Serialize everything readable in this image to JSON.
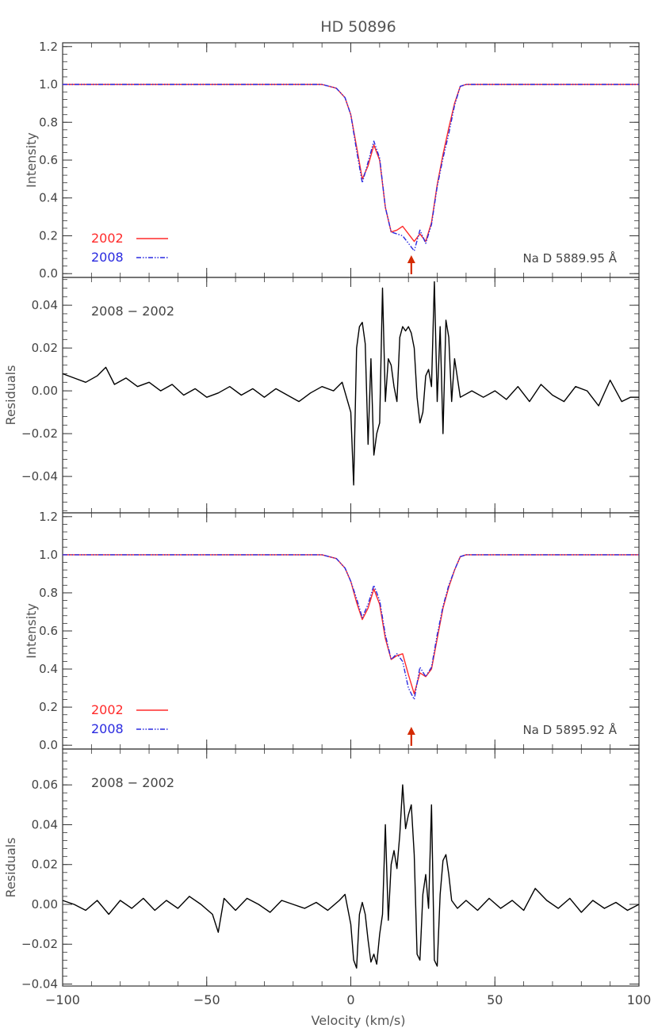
{
  "figure": {
    "title": "HD 50896",
    "xlabel": "Velocity (km/s)",
    "xlim": [
      -100,
      100
    ],
    "xticks": [
      -100,
      -50,
      0,
      50,
      100
    ],
    "xtick_labels": [
      "−100",
      "−50",
      "0",
      "50",
      "100"
    ]
  },
  "colors": {
    "series_2002": "#ff2a2a",
    "series_2008": "#2a2ae0",
    "residual": "#000000",
    "arrow": "#d42a00",
    "axis": "#333333"
  },
  "chart_data": [
    {
      "type": "line",
      "ylabel": "Intensity",
      "ylim": [
        -0.02,
        1.22
      ],
      "yticks": [
        0.0,
        0.2,
        0.4,
        0.6,
        0.8,
        1.0,
        1.2
      ],
      "ytick_labels": [
        "0.0",
        "0.2",
        "0.4",
        "0.6",
        "0.8",
        "1.0",
        "1.2"
      ],
      "annotation": "Na D 5889.95 Å",
      "arrow_velocity": 21,
      "legend": [
        {
          "label": "2002",
          "style": "solid"
        },
        {
          "label": "2008",
          "style": "dash-dot-dot"
        }
      ],
      "series": [
        {
          "name": "2002",
          "x": [
            -100,
            -90,
            -80,
            -70,
            -60,
            -50,
            -40,
            -30,
            -20,
            -10,
            -5,
            -2,
            0,
            2,
            4,
            6,
            8,
            10,
            12,
            14,
            16,
            18,
            20,
            22,
            24,
            26,
            28,
            30,
            32,
            34,
            36,
            38,
            40,
            50,
            60,
            70,
            80,
            90,
            100
          ],
          "y": [
            1.0,
            1.0,
            1.0,
            1.0,
            1.0,
            1.0,
            1.0,
            1.0,
            1.0,
            1.0,
            0.98,
            0.93,
            0.84,
            0.67,
            0.5,
            0.57,
            0.68,
            0.6,
            0.35,
            0.22,
            0.23,
            0.25,
            0.21,
            0.17,
            0.21,
            0.17,
            0.27,
            0.47,
            0.63,
            0.77,
            0.9,
            0.99,
            1.0,
            1.0,
            1.0,
            1.0,
            1.0,
            1.0,
            1.0
          ]
        },
        {
          "name": "2008",
          "x": [
            -100,
            -90,
            -80,
            -70,
            -60,
            -50,
            -40,
            -30,
            -20,
            -10,
            -5,
            -2,
            0,
            2,
            4,
            6,
            8,
            10,
            12,
            14,
            16,
            18,
            20,
            22,
            24,
            26,
            28,
            30,
            32,
            34,
            36,
            38,
            40,
            50,
            60,
            70,
            80,
            90,
            100
          ],
          "y": [
            1.0,
            1.0,
            1.0,
            1.0,
            1.0,
            1.0,
            1.0,
            1.0,
            1.0,
            1.0,
            0.98,
            0.93,
            0.84,
            0.65,
            0.48,
            0.59,
            0.7,
            0.61,
            0.35,
            0.22,
            0.21,
            0.2,
            0.16,
            0.12,
            0.23,
            0.16,
            0.26,
            0.46,
            0.61,
            0.74,
            0.89,
            0.99,
            1.0,
            1.0,
            1.0,
            1.0,
            1.0,
            1.0,
            1.0
          ]
        }
      ]
    },
    {
      "type": "line",
      "ylabel": "Residuals",
      "ylim": [
        -0.057,
        0.053
      ],
      "yticks": [
        -0.04,
        -0.02,
        0.0,
        0.02,
        0.04
      ],
      "ytick_labels": [
        "−0.04",
        "−0.02",
        "0.00",
        "0.02",
        "0.04"
      ],
      "annotation": "2008 − 2002",
      "series": [
        {
          "name": "2008 − 2002",
          "x": [
            -100,
            -96,
            -92,
            -88,
            -85,
            -82,
            -78,
            -74,
            -70,
            -66,
            -62,
            -58,
            -54,
            -50,
            -46,
            -42,
            -38,
            -34,
            -30,
            -26,
            -22,
            -18,
            -14,
            -10,
            -6,
            -3,
            0,
            1,
            2,
            3,
            4,
            5,
            6,
            7,
            8,
            9,
            10,
            11,
            12,
            13,
            14,
            15,
            16,
            17,
            18,
            19,
            20,
            21,
            22,
            23,
            24,
            25,
            26,
            27,
            28,
            29,
            30,
            31,
            32,
            33,
            34,
            35,
            36,
            38,
            42,
            46,
            50,
            54,
            58,
            62,
            66,
            70,
            74,
            78,
            82,
            86,
            90,
            94,
            97,
            100
          ],
          "y": [
            0.008,
            0.006,
            0.004,
            0.007,
            0.011,
            0.003,
            0.006,
            0.002,
            0.004,
            0.0,
            0.003,
            -0.002,
            0.001,
            -0.003,
            -0.001,
            0.002,
            -0.002,
            0.001,
            -0.003,
            0.001,
            -0.002,
            -0.005,
            -0.001,
            0.002,
            0.0,
            0.004,
            -0.01,
            -0.044,
            0.02,
            0.03,
            0.032,
            0.022,
            -0.025,
            0.015,
            -0.03,
            -0.02,
            -0.015,
            0.048,
            -0.005,
            0.015,
            0.012,
            0.002,
            -0.005,
            0.025,
            0.03,
            0.028,
            0.03,
            0.027,
            0.02,
            -0.003,
            -0.015,
            -0.01,
            0.007,
            0.01,
            0.002,
            0.051,
            -0.005,
            0.03,
            -0.02,
            0.033,
            0.025,
            -0.005,
            0.015,
            -0.003,
            0.0,
            -0.003,
            0.0,
            -0.004,
            0.002,
            -0.005,
            0.003,
            -0.002,
            -0.005,
            0.002,
            0.0,
            -0.007,
            0.005,
            -0.005,
            -0.003,
            -0.003
          ]
        }
      ]
    },
    {
      "type": "line",
      "ylabel": "Intensity",
      "ylim": [
        -0.02,
        1.22
      ],
      "yticks": [
        0.0,
        0.2,
        0.4,
        0.6,
        0.8,
        1.0,
        1.2
      ],
      "ytick_labels": [
        "0.0",
        "0.2",
        "0.4",
        "0.6",
        "0.8",
        "1.0",
        "1.2"
      ],
      "annotation": "Na D 5895.92 Å",
      "arrow_velocity": 21,
      "legend": [
        {
          "label": "2002",
          "style": "solid"
        },
        {
          "label": "2008",
          "style": "dash-dot-dot"
        }
      ],
      "series": [
        {
          "name": "2002",
          "x": [
            -100,
            -90,
            -80,
            -70,
            -60,
            -50,
            -40,
            -30,
            -20,
            -10,
            -5,
            -2,
            0,
            2,
            4,
            6,
            8,
            10,
            12,
            14,
            16,
            18,
            20,
            22,
            24,
            26,
            28,
            30,
            32,
            34,
            36,
            38,
            40,
            50,
            60,
            70,
            80,
            90,
            100
          ],
          "y": [
            1.0,
            1.0,
            1.0,
            1.0,
            1.0,
            1.0,
            1.0,
            1.0,
            1.0,
            1.0,
            0.98,
            0.93,
            0.86,
            0.75,
            0.66,
            0.72,
            0.82,
            0.74,
            0.56,
            0.45,
            0.47,
            0.48,
            0.37,
            0.27,
            0.38,
            0.36,
            0.4,
            0.56,
            0.72,
            0.83,
            0.92,
            0.99,
            1.0,
            1.0,
            1.0,
            1.0,
            1.0,
            1.0,
            1.0
          ]
        },
        {
          "name": "2008",
          "x": [
            -100,
            -90,
            -80,
            -70,
            -60,
            -50,
            -40,
            -30,
            -20,
            -10,
            -5,
            -2,
            0,
            2,
            4,
            6,
            8,
            10,
            12,
            14,
            16,
            18,
            20,
            22,
            24,
            26,
            28,
            30,
            32,
            34,
            36,
            38,
            40,
            50,
            60,
            70,
            80,
            90,
            100
          ],
          "y": [
            1.0,
            1.0,
            1.0,
            1.0,
            1.0,
            1.0,
            1.0,
            1.0,
            1.0,
            1.0,
            0.98,
            0.93,
            0.86,
            0.77,
            0.67,
            0.74,
            0.84,
            0.76,
            0.58,
            0.45,
            0.48,
            0.44,
            0.3,
            0.24,
            0.41,
            0.36,
            0.41,
            0.58,
            0.73,
            0.84,
            0.92,
            0.99,
            1.0,
            1.0,
            1.0,
            1.0,
            1.0,
            1.0,
            1.0
          ]
        }
      ]
    },
    {
      "type": "line",
      "ylabel": "Residuals",
      "ylim": [
        -0.041,
        0.078
      ],
      "yticks": [
        -0.04,
        -0.02,
        0.0,
        0.02,
        0.04,
        0.06
      ],
      "ytick_labels": [
        "−0.04",
        "−0.02",
        "0.00",
        "0.02",
        "0.04",
        "0.06"
      ],
      "annotation": "2008 − 2002",
      "series": [
        {
          "name": "2008 − 2002",
          "x": [
            -100,
            -96,
            -92,
            -88,
            -84,
            -80,
            -76,
            -72,
            -68,
            -64,
            -60,
            -56,
            -52,
            -48,
            -46,
            -44,
            -40,
            -36,
            -32,
            -28,
            -24,
            -20,
            -16,
            -12,
            -8,
            -4,
            -2,
            0,
            1,
            2,
            3,
            4,
            5,
            6,
            7,
            8,
            9,
            10,
            11,
            12,
            13,
            14,
            15,
            16,
            17,
            18,
            19,
            20,
            21,
            22,
            23,
            24,
            25,
            26,
            27,
            28,
            29,
            30,
            31,
            32,
            33,
            34,
            35,
            37,
            40,
            44,
            48,
            52,
            56,
            60,
            64,
            68,
            72,
            76,
            80,
            84,
            88,
            92,
            96,
            100
          ],
          "y": [
            0.002,
            0.0,
            -0.003,
            0.002,
            -0.005,
            0.002,
            -0.002,
            0.003,
            -0.003,
            0.002,
            -0.002,
            0.004,
            0.0,
            -0.005,
            -0.014,
            0.003,
            -0.003,
            0.003,
            0.0,
            -0.004,
            0.002,
            0.0,
            -0.002,
            0.001,
            -0.003,
            0.002,
            0.005,
            -0.01,
            -0.028,
            -0.032,
            -0.005,
            0.001,
            -0.005,
            -0.018,
            -0.029,
            -0.025,
            -0.03,
            -0.015,
            -0.005,
            0.04,
            -0.008,
            0.02,
            0.027,
            0.018,
            0.035,
            0.06,
            0.038,
            0.045,
            0.05,
            0.025,
            -0.025,
            -0.028,
            0.005,
            0.015,
            -0.002,
            0.05,
            -0.028,
            -0.031,
            0.005,
            0.022,
            0.025,
            0.015,
            0.002,
            -0.002,
            0.002,
            -0.003,
            0.003,
            -0.002,
            0.002,
            -0.003,
            0.008,
            0.002,
            -0.002,
            0.003,
            -0.004,
            0.002,
            -0.002,
            0.001,
            -0.003,
            0.0
          ]
        }
      ]
    }
  ]
}
